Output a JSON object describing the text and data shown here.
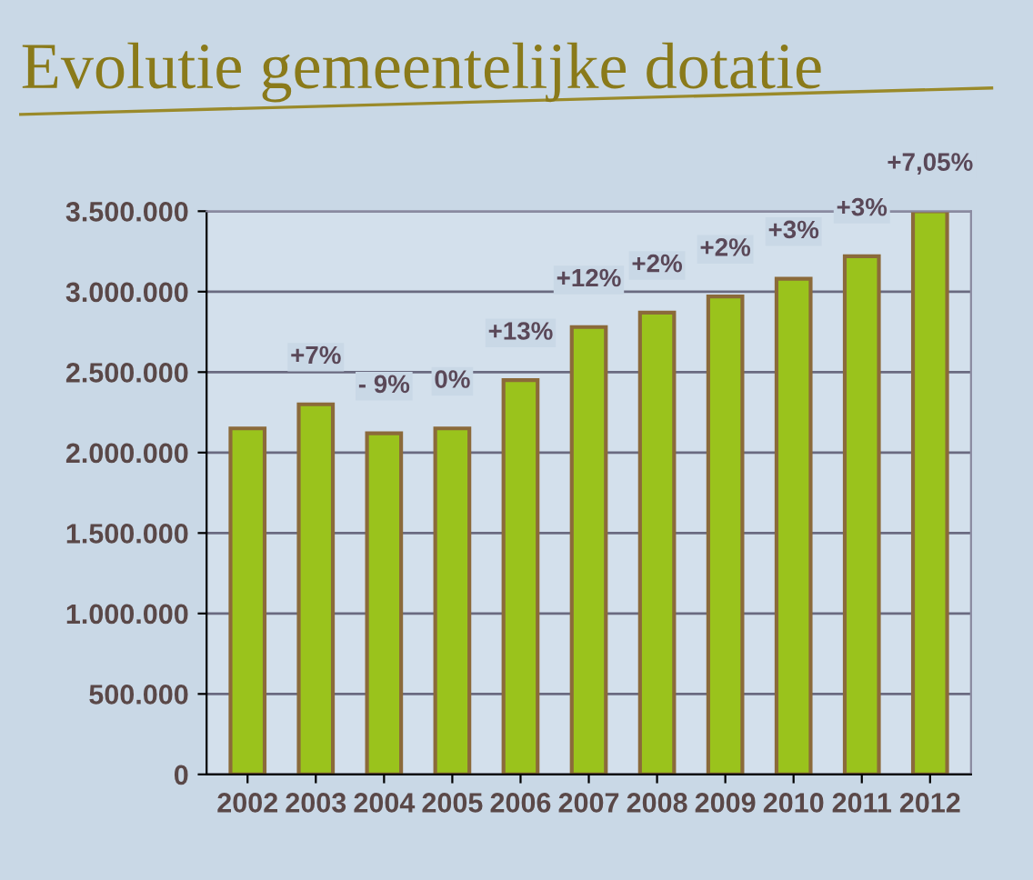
{
  "chart_data": {
    "type": "bar",
    "title": "Evolutie gemeentelijke dotatie",
    "categories": [
      "2002",
      "2003",
      "2004",
      "2005",
      "2006",
      "2007",
      "2008",
      "2009",
      "2010",
      "2011",
      "2012"
    ],
    "values": [
      2150000,
      2300000,
      2120000,
      2150000,
      2450000,
      2780000,
      2870000,
      2970000,
      3080000,
      3220000,
      3500000
    ],
    "color": "#9ac31c",
    "ylim": [
      0,
      3500000
    ],
    "yticks": [
      {
        "value": 0,
        "label": "0"
      },
      {
        "value": 500000,
        "label": "500.000"
      },
      {
        "value": 1000000,
        "label": "1.000.000"
      },
      {
        "value": 1500000,
        "label": "1.500.000"
      },
      {
        "value": 2000000,
        "label": "2.000.000"
      },
      {
        "value": 2500000,
        "label": "2.500.000"
      },
      {
        "value": 3000000,
        "label": "3.000.000"
      },
      {
        "value": 3500000,
        "label": "3.500.000"
      }
    ],
    "grid": "y",
    "annotations": [
      {
        "text": "+7%",
        "x": "2003",
        "y": 2300000
      },
      {
        "text": "- 9%",
        "x": "2004",
        "y": 2120000
      },
      {
        "text": "0%",
        "x": "2005",
        "y": 2150000
      },
      {
        "text": "+13%",
        "x": "2006",
        "y": 2450000
      },
      {
        "text": "+12%",
        "x": "2007",
        "y": 2780000
      },
      {
        "text": "+2%",
        "x": "2008",
        "y": 2870000
      },
      {
        "text": "+2%",
        "x": "2009",
        "y": 2970000
      },
      {
        "text": "+3%",
        "x": "2010",
        "y": 3080000
      },
      {
        "text": "+3%",
        "x": "2011",
        "y": 3220000
      },
      {
        "text": "+7,05%",
        "x": "2012",
        "y": 3500000
      }
    ]
  }
}
